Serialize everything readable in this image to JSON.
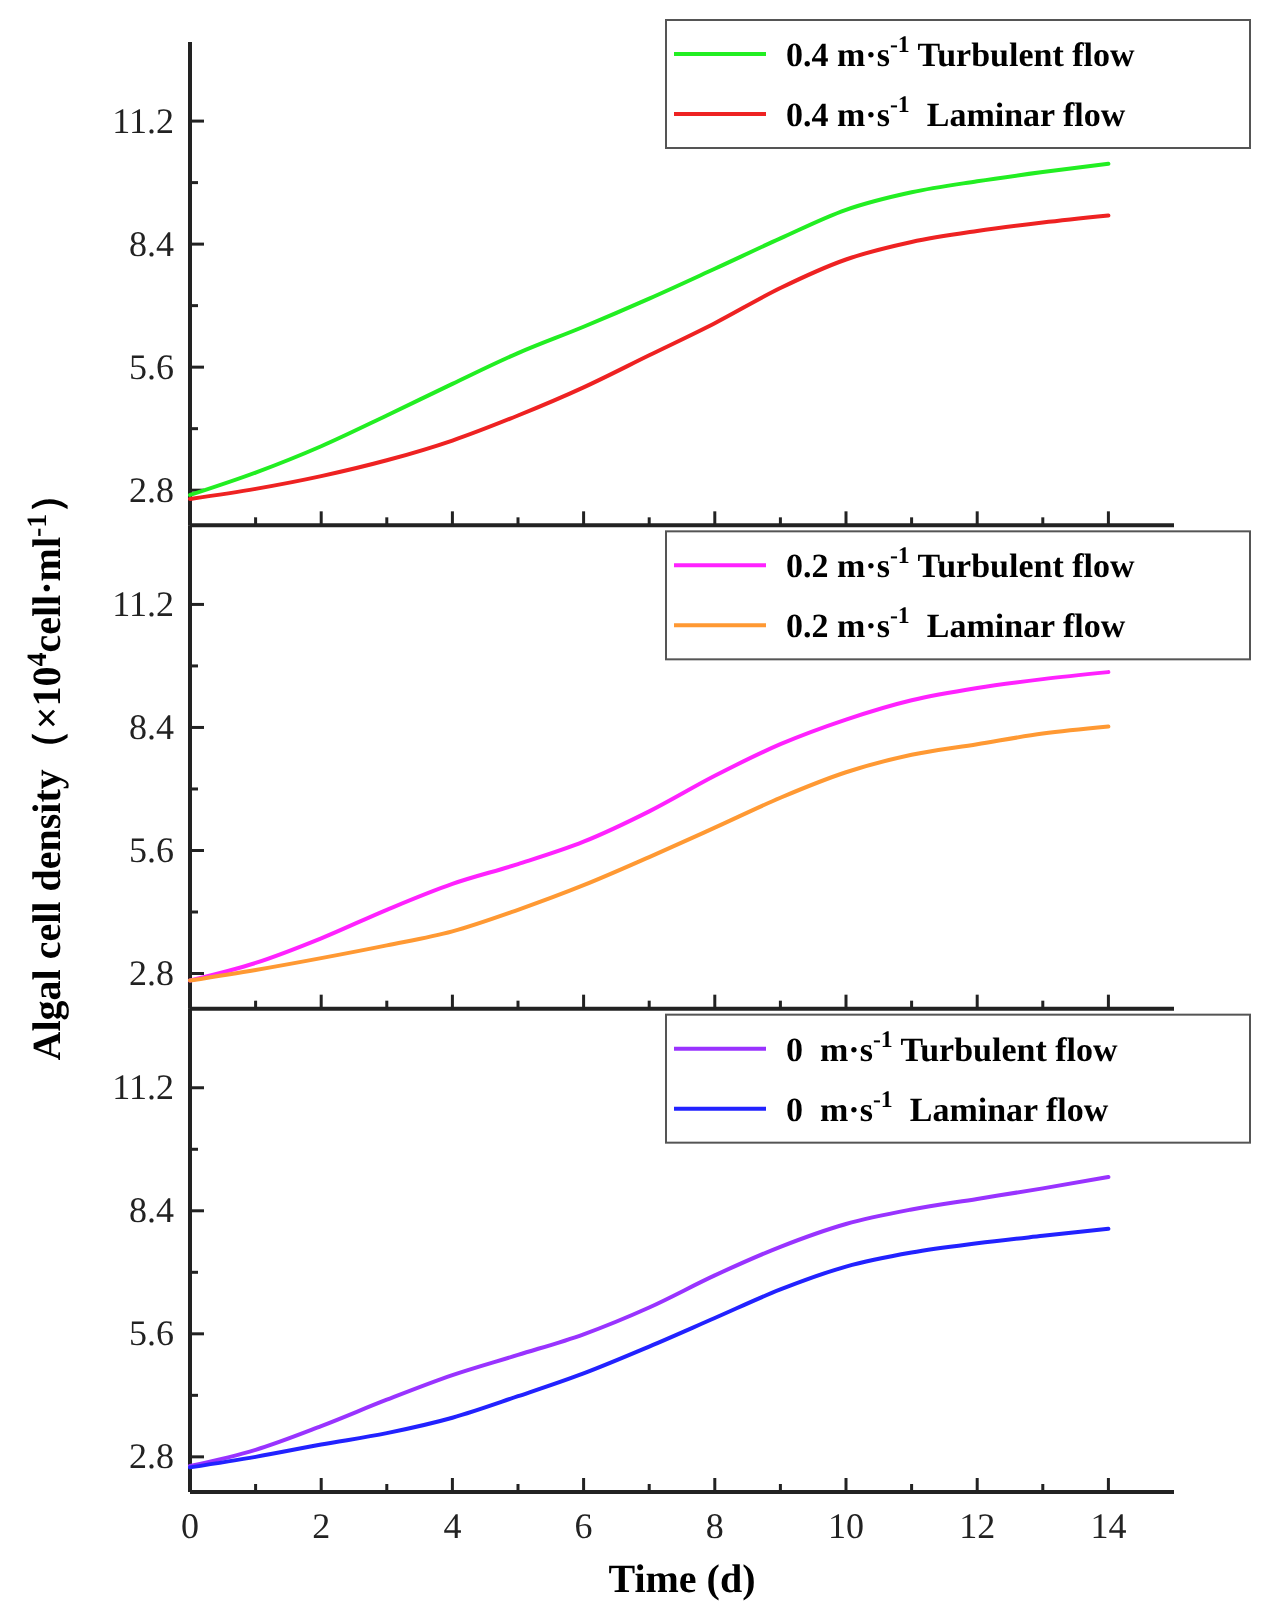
{
  "chart_data": [
    {
      "type": "line",
      "x": [
        0,
        1,
        2,
        3,
        4,
        5,
        6,
        7,
        8,
        9,
        10,
        11,
        12,
        13,
        14
      ],
      "xlim": [
        0,
        15
      ],
      "xticks": [
        0,
        2,
        4,
        6,
        8,
        10,
        12,
        14
      ],
      "ylim": [
        2,
        13
      ],
      "yticks": [
        2.8,
        5.6,
        8.4,
        11.2
      ],
      "tick_labels": "y",
      "legend": "top right",
      "series": [
        {
          "name": "0.4 m·s$^{-1}$ Turbulent flow",
          "color": "#22ee22",
          "values": [
            2.69,
            3.2,
            3.8,
            4.5,
            5.22,
            5.92,
            6.52,
            7.16,
            7.84,
            8.53,
            9.18,
            9.58,
            9.83,
            10.04,
            10.23
          ]
        },
        {
          "name": "0.4 m·s$^{-1}$  Laminar flow",
          "color": "#ee2222",
          "values": [
            2.6,
            2.83,
            3.12,
            3.48,
            3.93,
            4.5,
            5.14,
            5.87,
            6.6,
            7.4,
            8.05,
            8.45,
            8.7,
            8.89,
            9.05
          ]
        }
      ]
    },
    {
      "type": "line",
      "x": [
        0,
        1,
        2,
        3,
        4,
        5,
        6,
        7,
        8,
        9,
        10,
        11,
        12,
        13,
        14
      ],
      "xlim": [
        0,
        15
      ],
      "xticks": [
        0,
        2,
        4,
        6,
        8,
        10,
        12,
        14
      ],
      "ylim": [
        2,
        13
      ],
      "yticks": [
        2.8,
        5.6,
        8.4,
        11.2
      ],
      "tick_labels": "y",
      "legend": "top right",
      "ylabel": "Algal cell density（×10$^{4}$cell·ml$^{-1}$）",
      "series": [
        {
          "name": "0.2 m·s$^{-1}$ Turbulent flow",
          "color": "#ff22ff",
          "values": [
            2.64,
            3.04,
            3.6,
            4.25,
            4.84,
            5.29,
            5.8,
            6.49,
            7.3,
            8.02,
            8.58,
            9.02,
            9.3,
            9.5,
            9.66
          ]
        },
        {
          "name": "0.2 m·s$^{-1}$  Laminar flow",
          "color": "#ff9933",
          "values": [
            2.64,
            2.88,
            3.15,
            3.44,
            3.76,
            4.25,
            4.81,
            5.45,
            6.12,
            6.8,
            7.38,
            7.78,
            8.02,
            8.26,
            8.42
          ]
        }
      ]
    },
    {
      "type": "line",
      "x": [
        0,
        1,
        2,
        3,
        4,
        5,
        6,
        7,
        8,
        9,
        10,
        11,
        12,
        13,
        14
      ],
      "xlim": [
        0,
        15
      ],
      "xticks": [
        0,
        2,
        4,
        6,
        8,
        10,
        12,
        14
      ],
      "ylim": [
        2,
        13
      ],
      "yticks": [
        2.8,
        5.6,
        8.4,
        11.2
      ],
      "legend": "top right",
      "xlabel": "Time (d)",
      "series": [
        {
          "name": "0  m·s$^{-1}$ Turbulent flow",
          "color": "#9933ff",
          "values": [
            2.59,
            2.96,
            3.5,
            4.1,
            4.66,
            5.12,
            5.59,
            6.2,
            6.93,
            7.58,
            8.1,
            8.43,
            8.67,
            8.91,
            9.17
          ]
        },
        {
          "name": "0  m·s$^{-1}$  Laminar flow",
          "color": "#2222ff",
          "values": [
            2.56,
            2.8,
            3.08,
            3.34,
            3.69,
            4.18,
            4.7,
            5.31,
            5.96,
            6.61,
            7.13,
            7.45,
            7.66,
            7.83,
            7.99
          ]
        }
      ]
    }
  ]
}
